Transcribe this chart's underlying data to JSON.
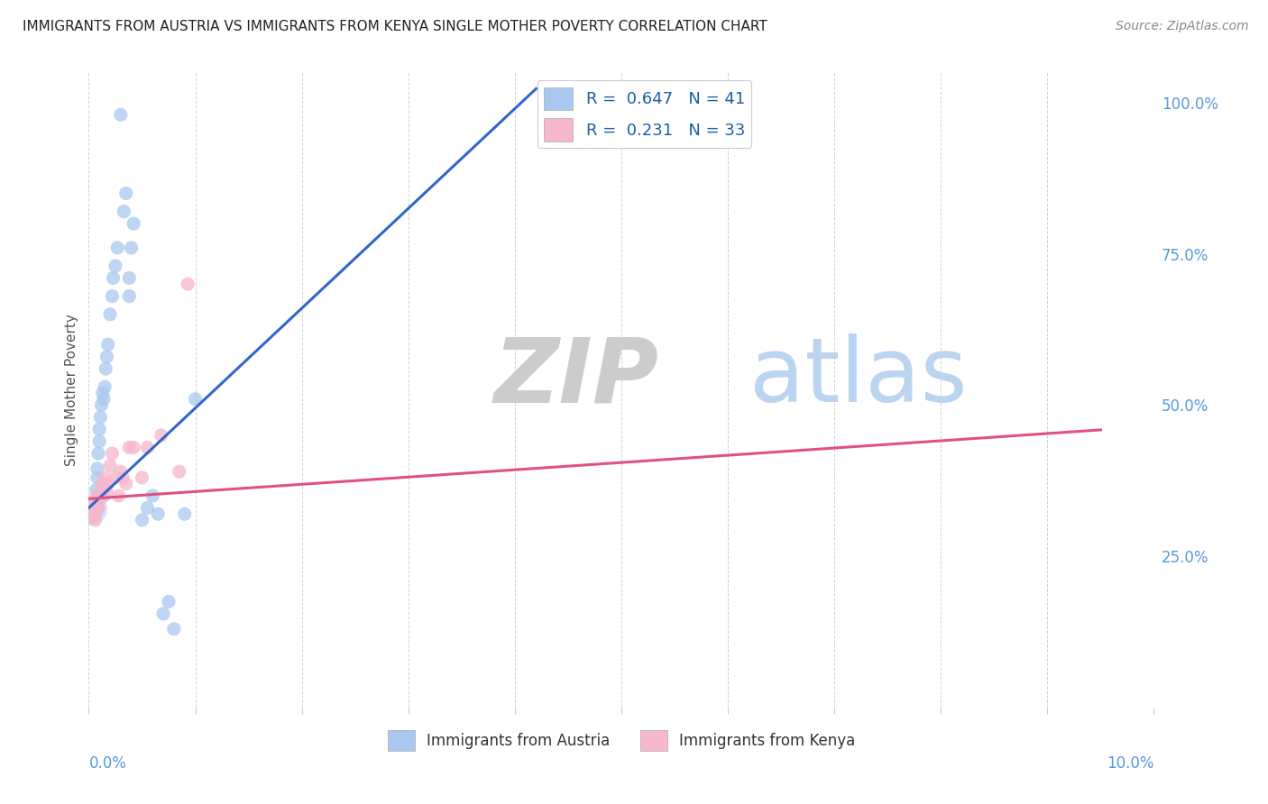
{
  "title": "IMMIGRANTS FROM AUSTRIA VS IMMIGRANTS FROM KENYA SINGLE MOTHER POVERTY CORRELATION CHART",
  "source": "Source: ZipAtlas.com",
  "ylabel": "Single Mother Poverty",
  "austria_color": "#a8c8f0",
  "kenya_color": "#f5b8cc",
  "austria_line_color": "#3366cc",
  "kenya_line_color": "#e05080",
  "austria_R": 0.647,
  "austria_N": 41,
  "kenya_R": 0.231,
  "kenya_N": 33,
  "background_color": "#ffffff",
  "watermark_zip": "ZIP",
  "watermark_atlas": "atlas",
  "xlim": [
    0,
    0.1
  ],
  "ylim": [
    0,
    1.05
  ],
  "austria_x": [
    0.0002,
    0.0003,
    0.0004,
    0.0005,
    0.0006,
    0.0006,
    0.0007,
    0.0008,
    0.0008,
    0.0009,
    0.001,
    0.001,
    0.0011,
    0.0012,
    0.0013,
    0.0014,
    0.0015,
    0.0016,
    0.0017,
    0.0018,
    0.002,
    0.0022,
    0.0023,
    0.0025,
    0.0027,
    0.003,
    0.0033,
    0.0035,
    0.0038,
    0.0038,
    0.004,
    0.0042,
    0.005,
    0.0055,
    0.006,
    0.0065,
    0.007,
    0.0075,
    0.008,
    0.009,
    0.01
  ],
  "austria_y": [
    0.315,
    0.33,
    0.325,
    0.32,
    0.33,
    0.34,
    0.36,
    0.38,
    0.395,
    0.42,
    0.44,
    0.46,
    0.48,
    0.5,
    0.52,
    0.51,
    0.53,
    0.56,
    0.58,
    0.6,
    0.65,
    0.68,
    0.71,
    0.73,
    0.76,
    0.98,
    0.82,
    0.85,
    0.68,
    0.71,
    0.76,
    0.8,
    0.31,
    0.33,
    0.35,
    0.32,
    0.155,
    0.175,
    0.13,
    0.32,
    0.51
  ],
  "kenya_x": [
    0.0002,
    0.0003,
    0.0004,
    0.0005,
    0.0005,
    0.0006,
    0.0007,
    0.0007,
    0.0008,
    0.0009,
    0.001,
    0.0011,
    0.0012,
    0.0013,
    0.0014,
    0.0015,
    0.0016,
    0.0017,
    0.0018,
    0.002,
    0.0022,
    0.0025,
    0.0028,
    0.003,
    0.0032,
    0.0035,
    0.0038,
    0.0042,
    0.005,
    0.0055,
    0.0068,
    0.0085,
    0.0093
  ],
  "kenya_y": [
    0.33,
    0.32,
    0.34,
    0.315,
    0.33,
    0.31,
    0.325,
    0.335,
    0.35,
    0.33,
    0.35,
    0.345,
    0.36,
    0.37,
    0.35,
    0.38,
    0.365,
    0.355,
    0.37,
    0.4,
    0.42,
    0.38,
    0.35,
    0.39,
    0.38,
    0.37,
    0.43,
    0.43,
    0.38,
    0.43,
    0.45,
    0.39,
    0.7
  ]
}
